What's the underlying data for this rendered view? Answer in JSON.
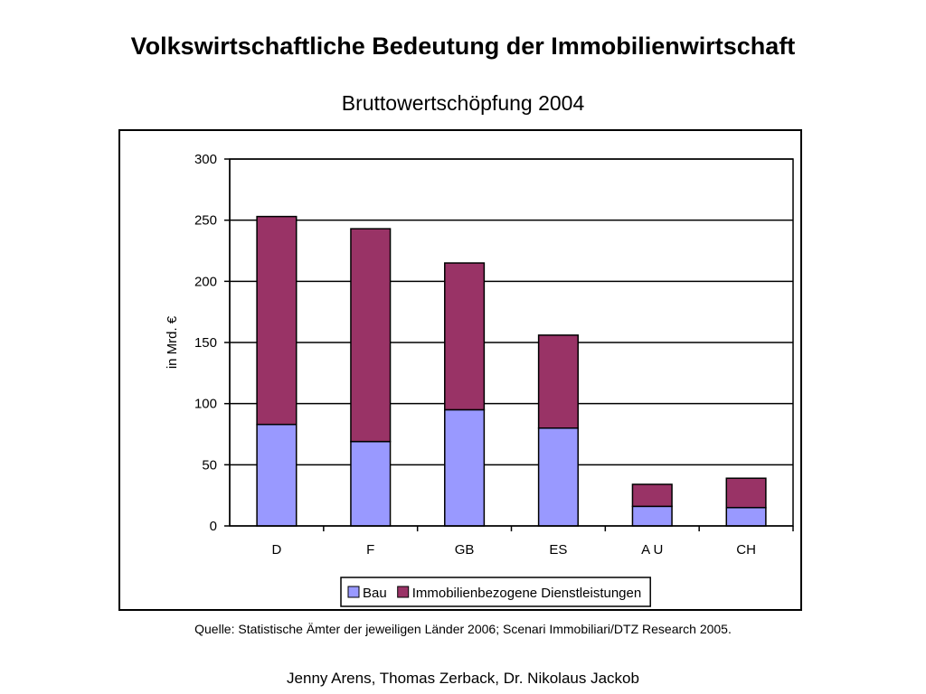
{
  "slide": {
    "title": "Volkswirtschaftliche Bedeutung der Immobilienwirtschaft",
    "source": "Quelle: Statistische Ämter der jeweiligen Länder 2006; Scenari Immobiliari/DTZ Research 2005.",
    "authors": "Jenny Arens, Thomas Zerback, Dr. Nikolaus Jackob"
  },
  "chart_data": {
    "type": "bar",
    "stacked": true,
    "title": "Bruttowertschöpfung 2004",
    "xlabel": "",
    "ylabel": "in Mrd. €",
    "ylim": [
      0,
      300
    ],
    "yticks": [
      0,
      50,
      100,
      150,
      200,
      250,
      300
    ],
    "grid": true,
    "legend_position": "bottom",
    "categories": [
      "D",
      "F",
      "GB",
      "ES",
      "A U",
      "CH"
    ],
    "series": [
      {
        "name": "Bau",
        "color": "#9999ff",
        "values": [
          83,
          69,
          95,
          80,
          16,
          15
        ]
      },
      {
        "name": "Immobilienbezogene Dienstleistungen",
        "color": "#993366",
        "values": [
          170,
          174,
          120,
          76,
          18,
          24
        ]
      }
    ]
  }
}
